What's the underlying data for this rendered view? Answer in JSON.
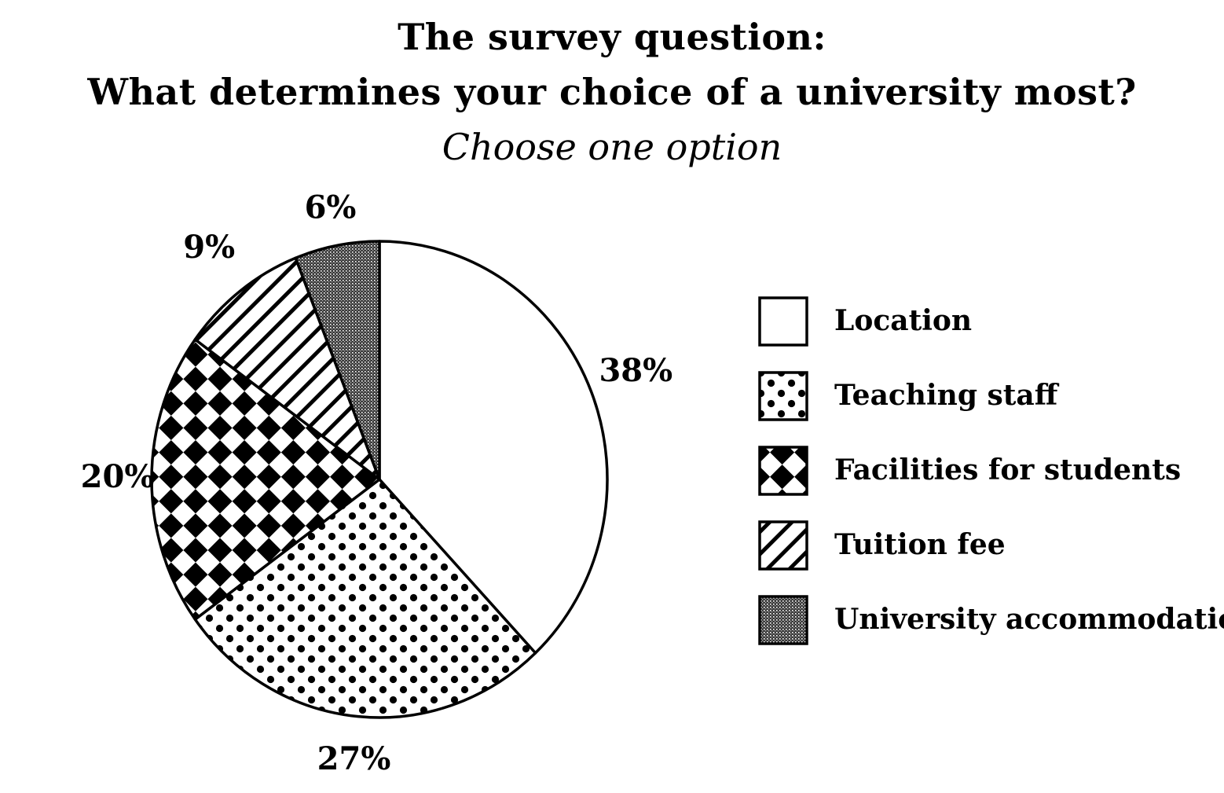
{
  "title": {
    "line1": "The survey question:",
    "line2": "What determines your choice of a university most?",
    "subtitle": "Choose one option"
  },
  "chart_data": {
    "type": "pie",
    "categories": [
      "Location",
      "Teaching staff",
      "Facilities for students",
      "Tuition fee",
      "University accommodation"
    ],
    "values": [
      38,
      27,
      20,
      9,
      6
    ],
    "value_labels": [
      "38%",
      "27%",
      "20%",
      "9%",
      "6%"
    ],
    "patterns": [
      "blank",
      "dots",
      "checker",
      "diagonal-stripes",
      "fine-stipple"
    ],
    "start_angle": "12 o'clock",
    "direction": "clockwise",
    "legend_placement": "right",
    "colors": {
      "fill": "#ffffff",
      "ink": "#000000"
    }
  }
}
